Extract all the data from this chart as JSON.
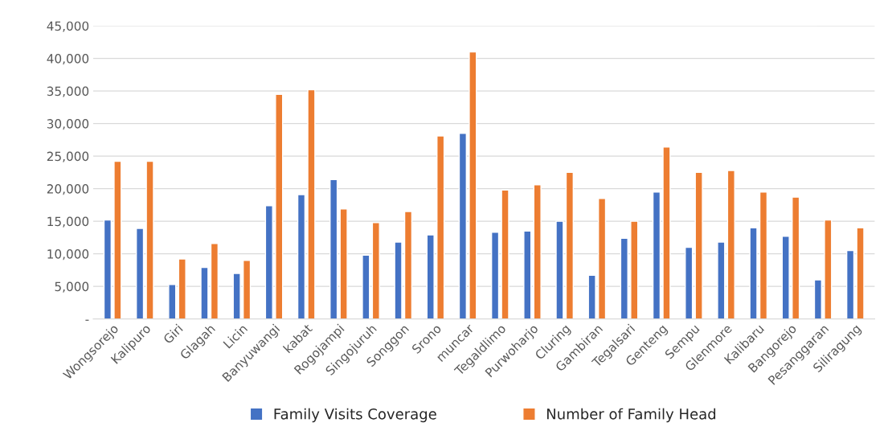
{
  "chart_data": {
    "type": "bar",
    "categories": [
      "Wongsorejo",
      "Kalipuro",
      "Giri",
      "Glagah",
      "Licin",
      "Banyuwangi",
      "kabat",
      "Rogojampi",
      "Singojuruh",
      "Songgon",
      "Srono",
      "muncar",
      "Tegaldlimo",
      "Purwoharjo",
      "Cluring",
      "Gambiran",
      "Tegalsari",
      "Genteng",
      "Sempu",
      "Glenmore",
      "Kalibaru",
      "Bangorejo",
      "Pesanggaran",
      "Siliragung"
    ],
    "series": [
      {
        "name": "Family Visits Coverage",
        "color": "#4472c4",
        "values": [
          15200,
          13900,
          5300,
          7900,
          7000,
          17400,
          19100,
          21400,
          9800,
          11800,
          12900,
          28500,
          13300,
          13500,
          15000,
          6700,
          12400,
          19500,
          11000,
          11800,
          14000,
          12700,
          6000,
          10500
        ]
      },
      {
        "name": "Number of Family Head",
        "color": "#ed7d31",
        "values": [
          24200,
          24200,
          9200,
          11600,
          9000,
          34500,
          35200,
          16900,
          14800,
          16500,
          28100,
          41000,
          19800,
          20600,
          22500,
          18500,
          15000,
          26400,
          22500,
          22800,
          19500,
          18700,
          15200,
          14000
        ]
      }
    ],
    "ylim": [
      0,
      45000
    ],
    "yticks": [
      {
        "value": 0,
        "label": "-"
      },
      {
        "value": 5000,
        "label": "5,000"
      },
      {
        "value": 10000,
        "label": "10,000"
      },
      {
        "value": 15000,
        "label": "15,000"
      },
      {
        "value": 20000,
        "label": "20,000"
      },
      {
        "value": 25000,
        "label": "25,000"
      },
      {
        "value": 30000,
        "label": "30,000"
      },
      {
        "value": 35000,
        "label": "35,000"
      },
      {
        "value": 40000,
        "label": "40,000"
      },
      {
        "value": 45000,
        "label": "45,000"
      }
    ],
    "grid": "y",
    "legend": "bottom"
  }
}
